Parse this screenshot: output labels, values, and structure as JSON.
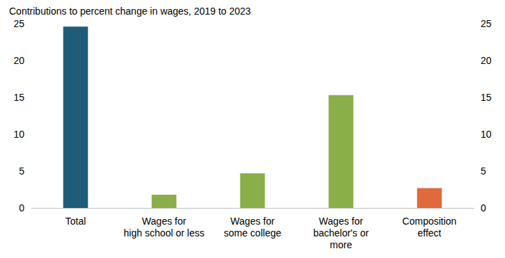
{
  "chart_data": {
    "type": "bar",
    "title": "Contributions to percent change in wages, 2019 to 2023",
    "categories": [
      "Total",
      "Wages for\nhigh school or less",
      "Wages for\nsome college",
      "Wages for\nbachelor's or\nmore",
      "Composition\neffect"
    ],
    "values": [
      24.6,
      1.8,
      4.7,
      15.3,
      2.7
    ],
    "colors": [
      "#1f5c7a",
      "#8aae48",
      "#8aae48",
      "#8aae48",
      "#e06a3b"
    ],
    "ylim": [
      0,
      25
    ],
    "yticks": [
      0,
      5,
      10,
      15,
      20,
      25
    ],
    "y2lim": [
      0,
      25
    ],
    "y2ticks": [
      0,
      5,
      10,
      15,
      20,
      25
    ],
    "grid": false
  }
}
